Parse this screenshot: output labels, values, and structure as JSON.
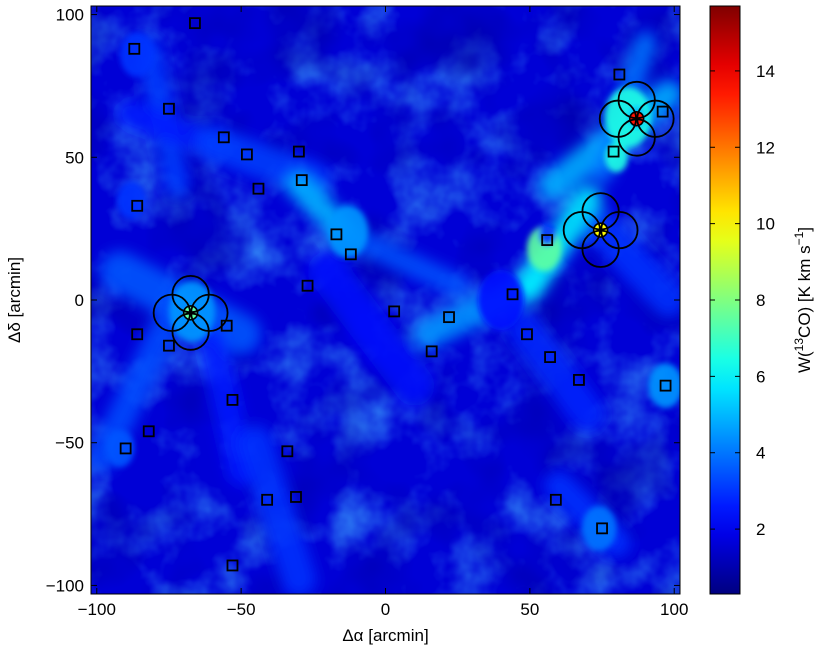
{
  "chart_data": {
    "type": "heatmap",
    "title": "",
    "xlabel": "Δα [arcmin]",
    "ylabel": "Δδ [arcmin]",
    "xlim": [
      -102,
      102
    ],
    "ylim": [
      -103,
      103
    ],
    "x_ticks": [
      -100,
      -50,
      0,
      50,
      100
    ],
    "y_ticks": [
      -100,
      -50,
      0,
      50,
      100
    ],
    "x_tick_labels": [
      "−100",
      "−50",
      "0",
      "50",
      "100"
    ],
    "y_tick_labels": [
      "−100",
      "−50",
      "0",
      "50",
      "100"
    ],
    "colorbar": {
      "label_pre": "W(",
      "label_sup1": "13",
      "label_mid": "CO) [K km s",
      "label_sup2": "−1",
      "label_post": "]",
      "range": [
        0.3,
        15.7
      ],
      "ticks": [
        2,
        4,
        6,
        8,
        10,
        12,
        14
      ],
      "tick_labels": [
        "2",
        "4",
        "6",
        "8",
        "10",
        "12",
        "14"
      ],
      "colormap": "jet"
    },
    "squares": [
      [
        -66,
        97
      ],
      [
        -87,
        88
      ],
      [
        -75,
        67
      ],
      [
        -56,
        57
      ],
      [
        -48,
        51
      ],
      [
        -44,
        39
      ],
      [
        -30,
        52
      ],
      [
        -29,
        42
      ],
      [
        -86,
        33
      ],
      [
        -17,
        23
      ],
      [
        -12,
        16
      ],
      [
        -27,
        5
      ],
      [
        -55,
        -9
      ],
      [
        -86,
        -12
      ],
      [
        -75,
        -16
      ],
      [
        -53,
        -35
      ],
      [
        -82,
        -46
      ],
      [
        -90,
        -52
      ],
      [
        -34,
        -53
      ],
      [
        -41,
        -70
      ],
      [
        -31,
        -69
      ],
      [
        -53,
        -93
      ],
      [
        3,
        -4
      ],
      [
        22,
        -6
      ],
      [
        16,
        -18
      ],
      [
        44,
        2
      ],
      [
        49,
        -12
      ],
      [
        57,
        -20
      ],
      [
        67,
        -28
      ],
      [
        97,
        -30
      ],
      [
        59,
        -70
      ],
      [
        75,
        -80
      ],
      [
        56,
        21
      ],
      [
        81,
        79
      ],
      [
        79,
        52
      ],
      [
        96,
        66
      ]
    ],
    "pointing_patterns": [
      {
        "x": -67.5,
        "y": -4.5,
        "value": 7.5
      },
      {
        "x": 87.0,
        "y": 63.5,
        "value": 13.5
      },
      {
        "x": 74.5,
        "y": 24.5,
        "value": 10.0
      }
    ],
    "emission_filaments": [
      {
        "x1": -82,
        "y1": 88,
        "x2": -72,
        "y2": 40,
        "w": 8,
        "v": 3.2
      },
      {
        "x1": -88,
        "y1": 65,
        "x2": -60,
        "y2": 55,
        "w": 10,
        "v": 2.6
      },
      {
        "x1": -60,
        "y1": 55,
        "x2": -25,
        "y2": 42,
        "w": 12,
        "v": 3.2
      },
      {
        "x1": -30,
        "y1": 40,
        "x2": -12,
        "y2": 22,
        "w": 9,
        "v": 5.0
      },
      {
        "x1": -12,
        "y1": 22,
        "x2": 25,
        "y2": 5,
        "w": 8,
        "v": 3.5
      },
      {
        "x1": -92,
        "y1": 10,
        "x2": -50,
        "y2": -12,
        "w": 14,
        "v": 3.6
      },
      {
        "x1": -72,
        "y1": 0,
        "x2": -98,
        "y2": -55,
        "w": 10,
        "v": 3.4
      },
      {
        "x1": -60,
        "y1": -15,
        "x2": -50,
        "y2": -60,
        "w": 10,
        "v": 2.6
      },
      {
        "x1": -45,
        "y1": -50,
        "x2": -30,
        "y2": -98,
        "w": 12,
        "v": 3.0
      },
      {
        "x1": 15,
        "y1": -12,
        "x2": 50,
        "y2": 5,
        "w": 10,
        "v": 4.5
      },
      {
        "x1": 50,
        "y1": 5,
        "x2": 70,
        "y2": 35,
        "w": 10,
        "v": 6.0
      },
      {
        "x1": 58,
        "y1": 40,
        "x2": 98,
        "y2": 72,
        "w": 10,
        "v": 5.0
      },
      {
        "x1": 75,
        "y1": 45,
        "x2": 90,
        "y2": 90,
        "w": 8,
        "v": 4.0
      },
      {
        "x1": 75,
        "y1": 25,
        "x2": 98,
        "y2": 0,
        "w": 12,
        "v": 3.0
      },
      {
        "x1": 48,
        "y1": -10,
        "x2": 70,
        "y2": -40,
        "w": 12,
        "v": 2.8
      },
      {
        "x1": 60,
        "y1": -65,
        "x2": 80,
        "y2": -85,
        "w": 10,
        "v": 3.0
      },
      {
        "x1": -20,
        "y1": 10,
        "x2": 10,
        "y2": -30,
        "w": 14,
        "v": 2.4
      }
    ],
    "emission_clumps": [
      {
        "x": -67,
        "y": -4,
        "r": 8,
        "v": 4.5
      },
      {
        "x": -13,
        "y": 24,
        "r": 7,
        "v": 4.5
      },
      {
        "x": 55,
        "y": 18,
        "r": 6,
        "v": 7.5
      },
      {
        "x": 56,
        "y": 23,
        "r": 3,
        "v": 3.0
      },
      {
        "x": 80,
        "y": 50,
        "r": 4,
        "v": 6.5
      },
      {
        "x": 84,
        "y": 64,
        "r": 8,
        "v": 6.5
      },
      {
        "x": 87,
        "y": 64,
        "r": 3,
        "v": 5.0
      },
      {
        "x": -86,
        "y": 86,
        "r": 6,
        "v": 3.0
      },
      {
        "x": 97,
        "y": -30,
        "r": 6,
        "v": 4.5
      },
      {
        "x": 74,
        "y": -80,
        "r": 6,
        "v": 4.0
      },
      {
        "x": -88,
        "y": 35,
        "r": 5,
        "v": 3.0
      },
      {
        "x": -92,
        "y": -52,
        "r": 5,
        "v": 3.5
      },
      {
        "x": 40,
        "y": 0,
        "r": 8,
        "v": 2.5
      }
    ]
  }
}
